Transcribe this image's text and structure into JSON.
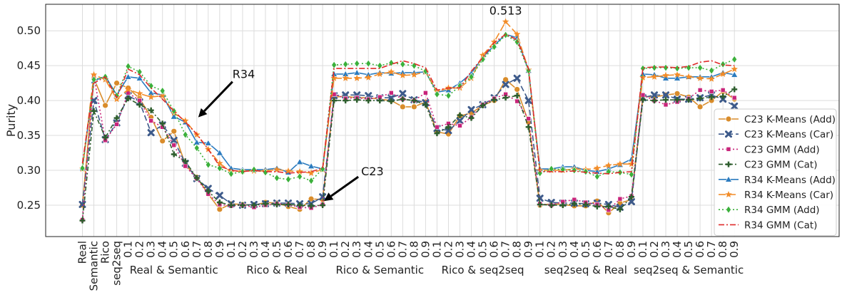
{
  "chart_data": {
    "type": "line",
    "ylabel": "Purity",
    "xlabel": "",
    "ylim": [
      0.205,
      0.538
    ],
    "yticks": [
      "0.25",
      "0.30",
      "0.35",
      "0.40",
      "0.45",
      "0.50"
    ],
    "grid": true,
    "legend_position": "bottom-right",
    "x_labels": [
      "Real",
      "Semantic",
      "Rico",
      "seq2seq",
      "0.1",
      "0.2",
      "0.3",
      "0.4",
      "0.5",
      "0.6",
      "0.7",
      "0.8",
      "0.9",
      "0.1",
      "0.2",
      "0.3",
      "0.4",
      "0.5",
      "0.6",
      "0.7",
      "0.8",
      "0.9",
      "0.1",
      "0.2",
      "0.3",
      "0.4",
      "0.5",
      "0.6",
      "0.7",
      "0.8",
      "0.9",
      "0.1",
      "0.2",
      "0.3",
      "0.4",
      "0.5",
      "0.6",
      "0.7",
      "0.8",
      "0.9",
      "0.1",
      "0.2",
      "0.3",
      "0.4",
      "0.5",
      "0.6",
      "0.7",
      "0.8",
      "0.9",
      "0.1",
      "0.2",
      "0.3",
      "0.4",
      "0.5",
      "0.6",
      "0.7",
      "0.8",
      "0.9"
    ],
    "groups": [
      {
        "label": "Real & Semantic",
        "start": 4,
        "end": 12
      },
      {
        "label": "Rico & Real",
        "start": 13,
        "end": 21
      },
      {
        "label": "Rico & Semantic",
        "start": 22,
        "end": 30
      },
      {
        "label": "Rico & seq2seq",
        "start": 31,
        "end": 39
      },
      {
        "label": "seq2seq & Real",
        "start": 40,
        "end": 48
      },
      {
        "label": "seq2seq & Semantic",
        "start": 49,
        "end": 57
      }
    ],
    "series": [
      {
        "name": "C23 K-Means (Add)",
        "color": "#d98c2b",
        "dash": "solid",
        "marker": "circle",
        "values": [
          0.25,
          0.432,
          0.393,
          0.425,
          0.418,
          0.403,
          0.376,
          0.342,
          0.356,
          0.308,
          0.29,
          0.266,
          0.244,
          0.252,
          0.251,
          0.25,
          0.254,
          0.253,
          0.248,
          0.244,
          0.259,
          0.258,
          0.405,
          0.406,
          0.404,
          0.404,
          0.402,
          0.4,
          0.391,
          0.391,
          0.398,
          0.355,
          0.352,
          0.378,
          0.382,
          0.393,
          0.4,
          0.43,
          0.416,
          0.369,
          0.25,
          0.252,
          0.251,
          0.249,
          0.249,
          0.256,
          0.239,
          0.253,
          0.258,
          0.406,
          0.405,
          0.408,
          0.41,
          0.405,
          0.391,
          0.4,
          0.413,
          0.402
        ]
      },
      {
        "name": "C23 K-Means (Car)",
        "color": "#3d5a8a",
        "dash": "8,4",
        "marker": "x",
        "values": [
          0.251,
          0.4,
          0.344,
          0.368,
          0.407,
          0.398,
          0.354,
          0.365,
          0.343,
          0.31,
          0.288,
          0.274,
          0.264,
          0.252,
          0.25,
          0.251,
          0.252,
          0.253,
          0.253,
          0.252,
          0.252,
          0.262,
          0.407,
          0.408,
          0.408,
          0.407,
          0.404,
          0.404,
          0.41,
          0.401,
          0.397,
          0.36,
          0.357,
          0.371,
          0.387,
          0.394,
          0.404,
          0.423,
          0.432,
          0.4,
          0.26,
          0.254,
          0.253,
          0.253,
          0.252,
          0.253,
          0.251,
          0.247,
          0.255,
          0.404,
          0.408,
          0.408,
          0.402,
          0.402,
          0.404,
          0.408,
          0.402,
          0.392
        ]
      },
      {
        "name": "C23 GMM (Add)",
        "color": "#c8247a",
        "dash": "2,3",
        "marker": "square",
        "values": [
          0.229,
          0.435,
          0.343,
          0.366,
          0.411,
          0.4,
          0.371,
          0.362,
          0.336,
          0.306,
          0.288,
          0.266,
          0.251,
          0.249,
          0.25,
          0.247,
          0.25,
          0.252,
          0.251,
          0.247,
          0.246,
          0.251,
          0.409,
          0.403,
          0.404,
          0.402,
          0.405,
          0.411,
          0.402,
          0.4,
          0.411,
          0.362,
          0.367,
          0.364,
          0.376,
          0.394,
          0.403,
          0.409,
          0.399,
          0.374,
          0.252,
          0.25,
          0.255,
          0.258,
          0.254,
          0.251,
          0.243,
          0.259,
          0.263,
          0.408,
          0.4,
          0.394,
          0.398,
          0.403,
          0.415,
          0.413,
          0.415,
          0.404
        ]
      },
      {
        "name": "C23 GMM (Cat)",
        "color": "#2e5e2e",
        "dash": "6,3,2,3",
        "marker": "plus",
        "values": [
          0.228,
          0.385,
          0.347,
          0.375,
          0.403,
          0.394,
          0.386,
          0.367,
          0.323,
          0.313,
          0.289,
          0.27,
          0.254,
          0.25,
          0.25,
          0.25,
          0.252,
          0.251,
          0.251,
          0.25,
          0.249,
          0.25,
          0.4,
          0.4,
          0.401,
          0.4,
          0.4,
          0.399,
          0.402,
          0.4,
          0.394,
          0.353,
          0.362,
          0.379,
          0.375,
          0.393,
          0.401,
          0.404,
          0.407,
          0.362,
          0.251,
          0.25,
          0.25,
          0.252,
          0.251,
          0.248,
          0.248,
          0.244,
          0.262,
          0.401,
          0.4,
          0.401,
          0.401,
          0.401,
          0.403,
          0.405,
          0.406,
          0.416
        ]
      },
      {
        "name": "R34 K-Means (Add)",
        "color": "#2b7bbf",
        "dash": "solid",
        "marker": "triangle",
        "values": [
          0.303,
          0.428,
          0.435,
          0.408,
          0.434,
          0.432,
          0.411,
          0.408,
          0.377,
          0.369,
          0.34,
          0.339,
          0.325,
          0.303,
          0.301,
          0.301,
          0.301,
          0.303,
          0.297,
          0.312,
          0.306,
          0.302,
          0.438,
          0.438,
          0.44,
          0.437,
          0.44,
          0.439,
          0.44,
          0.44,
          0.441,
          0.412,
          0.415,
          0.425,
          0.439,
          0.462,
          0.479,
          0.495,
          0.49,
          0.443,
          0.302,
          0.302,
          0.305,
          0.305,
          0.3,
          0.298,
          0.302,
          0.308,
          0.316,
          0.438,
          0.437,
          0.432,
          0.432,
          0.434,
          0.434,
          0.434,
          0.44,
          0.437
        ]
      },
      {
        "name": "R34 K-Means (Car)",
        "color": "#f28c28",
        "dash": "10,4",
        "marker": "star",
        "values": [
          0.302,
          0.437,
          0.43,
          0.402,
          0.416,
          0.41,
          0.405,
          0.407,
          0.382,
          0.371,
          0.351,
          0.33,
          0.31,
          0.298,
          0.299,
          0.299,
          0.299,
          0.301,
          0.299,
          0.298,
          0.296,
          0.301,
          0.432,
          0.432,
          0.432,
          0.433,
          0.438,
          0.441,
          0.436,
          0.437,
          0.441,
          0.413,
          0.418,
          0.418,
          0.432,
          0.465,
          0.484,
          0.513,
          0.495,
          0.444,
          0.3,
          0.3,
          0.3,
          0.302,
          0.301,
          0.303,
          0.307,
          0.309,
          0.309,
          0.433,
          0.434,
          0.436,
          0.437,
          0.434,
          0.432,
          0.431,
          0.438,
          0.445
        ]
      },
      {
        "name": "R34 GMM (Add)",
        "color": "#3bb03b",
        "dash": "2,3",
        "marker": "diamond",
        "values": [
          0.303,
          0.43,
          0.434,
          0.407,
          0.449,
          0.441,
          0.421,
          0.414,
          0.385,
          0.351,
          0.332,
          0.308,
          0.303,
          0.295,
          0.298,
          0.301,
          0.297,
          0.289,
          0.287,
          0.291,
          0.285,
          0.302,
          0.451,
          0.452,
          0.453,
          0.453,
          0.45,
          0.454,
          0.452,
          0.45,
          0.442,
          0.409,
          0.407,
          0.421,
          0.434,
          0.459,
          0.477,
          0.494,
          0.484,
          0.443,
          0.296,
          0.302,
          0.301,
          0.3,
          0.298,
          0.291,
          0.298,
          0.297,
          0.294,
          0.446,
          0.447,
          0.447,
          0.446,
          0.447,
          0.447,
          0.443,
          0.452,
          0.459
        ]
      },
      {
        "name": "R34 GMM (Cat)",
        "color": "#e02b2b",
        "dash": "8,3,2,3",
        "marker": "none",
        "values": [
          0.31,
          0.425,
          0.434,
          0.404,
          0.445,
          0.437,
          0.418,
          0.402,
          0.385,
          0.369,
          0.352,
          0.33,
          0.306,
          0.3,
          0.298,
          0.3,
          0.298,
          0.298,
          0.296,
          0.297,
          0.298,
          0.303,
          0.446,
          0.446,
          0.446,
          0.446,
          0.446,
          0.452,
          0.457,
          0.453,
          0.447,
          0.415,
          0.418,
          0.418,
          0.442,
          0.462,
          0.483,
          0.495,
          0.487,
          0.446,
          0.298,
          0.298,
          0.298,
          0.299,
          0.297,
          0.296,
          0.295,
          0.297,
          0.298,
          0.447,
          0.448,
          0.448,
          0.447,
          0.449,
          0.455,
          0.457,
          0.451,
          0.45
        ]
      }
    ],
    "annotations": [
      {
        "text": "R34",
        "target_index": 10,
        "target_y": 0.38
      },
      {
        "text": "C23",
        "target_index": 21,
        "target_y": 0.258
      },
      {
        "text": "0.513",
        "target_index": 37,
        "target_y": 0.513
      }
    ]
  }
}
